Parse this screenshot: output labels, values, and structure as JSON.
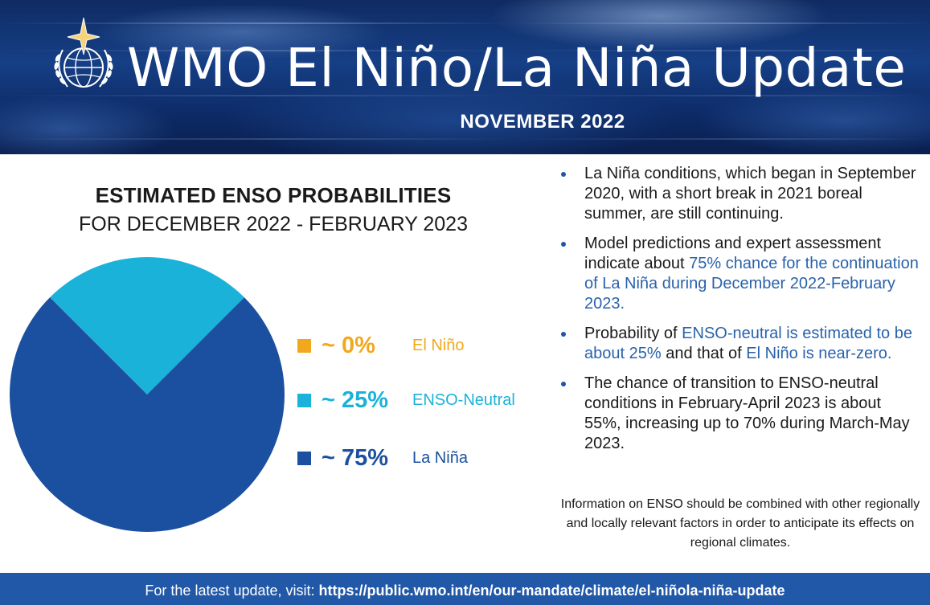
{
  "header": {
    "title": "WMO El Niño/La Niña Update",
    "date": "NOVEMBER 2022",
    "logo_icon": "wmo-emblem-icon"
  },
  "colors": {
    "el_nino": "#f2a81d",
    "enso_neutral": "#1bb2da",
    "la_nina": "#1b50a0",
    "highlight_text": "#2a62ab",
    "footer_bg": "#2158a8"
  },
  "chart_data": {
    "type": "pie",
    "title": "ESTIMATED ENSO PROBABILITIES",
    "subtitle": "FOR DECEMBER 2022 - FEBRUARY 2023",
    "categories": [
      "El Niño",
      "ENSO-Neutral",
      "La Niña"
    ],
    "values": [
      0,
      25,
      75
    ],
    "value_labels": [
      "~ 0%",
      "~ 25%",
      "~ 75%"
    ],
    "colors": [
      "#f2a81d",
      "#1bb2da",
      "#1b50a0"
    ],
    "legend_position": "right"
  },
  "bullets": [
    {
      "parts": [
        {
          "text": "La Niña conditions, which began in September 2020, with a short break in 2021 boreal summer, are still continuing.",
          "hl": false
        }
      ]
    },
    {
      "parts": [
        {
          "text": "Model predictions and expert assessment indicate about ",
          "hl": false
        },
        {
          "text": "75% chance for the continuation of La Niña during December 2022-February 2023.",
          "hl": true
        }
      ]
    },
    {
      "parts": [
        {
          "text": "Probability of ",
          "hl": false
        },
        {
          "text": "ENSO-neutral is estimated to be about 25%",
          "hl": true
        },
        {
          "text": " and that of ",
          "hl": false
        },
        {
          "text": " El Niño is near-zero.",
          "hl": true
        }
      ]
    },
    {
      "parts": [
        {
          "text": "The chance of transition to ENSO-neutral conditions in February-April 2023 is about 55%,  increasing up to 70% during March-May 2023.",
          "hl": false
        }
      ]
    }
  ],
  "note": "Information on ENSO should be combined with other regionally and locally relevant factors in order to anticipate its effects on regional climates.",
  "footer": {
    "prefix": "For the latest update, visit: ",
    "url": "https://public.wmo.int/en/our-mandate/climate/el-niñola-niña-update"
  }
}
